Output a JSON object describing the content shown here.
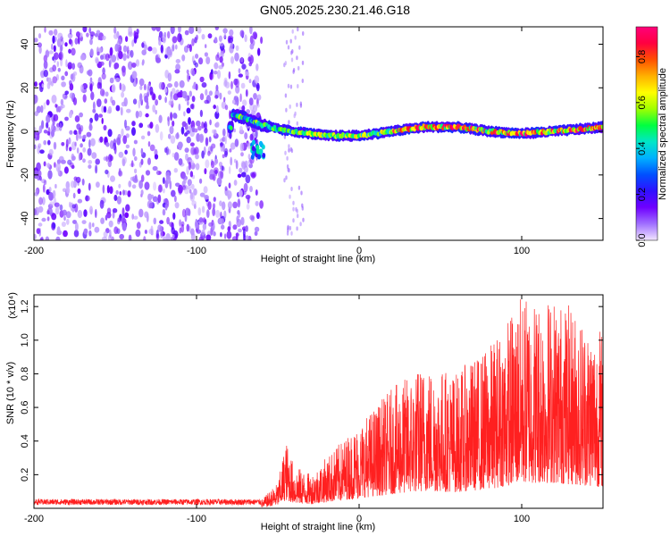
{
  "title": "GN05.2025.230.21.46.G18",
  "chart_data": [
    {
      "type": "heatmap",
      "xlabel": "Height of straight line (km)",
      "ylabel": "Frequency (Hz)",
      "xlim": [
        -200,
        150
      ],
      "ylim": [
        -50,
        48
      ],
      "xticks": [
        -200,
        -100,
        0,
        100
      ],
      "yticks": [
        -40,
        -20,
        0,
        20,
        40
      ],
      "colorbar": {
        "label": "Normalized spectral amplitude",
        "range": [
          0,
          0.93
        ],
        "ticks": [
          0.0,
          0.2,
          0.4,
          0.6,
          0.8
        ],
        "colormap": [
          "#f2e6ff",
          "#a070ff",
          "#6f00ff",
          "#3010ff",
          "#0050ff",
          "#00b0ff",
          "#00e6c8",
          "#00ff40",
          "#a0ff00",
          "#ffff00",
          "#ffb000",
          "#ff5000",
          "#ff0040",
          "#ff007a"
        ]
      },
      "features": {
        "noise_region_x": [
          -200,
          -60
        ],
        "signal_trace_x": [
          -80,
          150
        ],
        "signal_trace_freq": [
          [
            -78,
            8
          ],
          [
            -70,
            6
          ],
          [
            -60,
            3
          ],
          [
            -50,
            1
          ],
          [
            -40,
            0
          ],
          [
            -20,
            -2
          ],
          [
            0,
            -2
          ],
          [
            20,
            0
          ],
          [
            40,
            2
          ],
          [
            60,
            2
          ],
          [
            80,
            0
          ],
          [
            100,
            -1
          ],
          [
            120,
            0
          ],
          [
            150,
            2
          ]
        ]
      }
    },
    {
      "type": "line",
      "xlabel": "Height of straight line (km)",
      "ylabel": "SNR (10 * v/v)",
      "yscale_label": "(x10⁴)",
      "xlim": [
        -200,
        150
      ],
      "ylim": [
        0,
        1.27
      ],
      "xticks": [
        -200,
        -100,
        0,
        100
      ],
      "yticks": [
        0.2,
        0.4,
        0.6,
        0.8,
        1.0,
        1.2
      ],
      "series": [
        {
          "color": "#ff2020",
          "envelope": [
            [
              -200,
              0.04
            ],
            [
              -60,
              0.05
            ],
            [
              -50,
              0.15
            ],
            [
              -45,
              0.4
            ],
            [
              -40,
              0.25
            ],
            [
              -30,
              0.2
            ],
            [
              -20,
              0.3
            ],
            [
              -10,
              0.4
            ],
            [
              0,
              0.5
            ],
            [
              20,
              0.7
            ],
            [
              40,
              0.85
            ],
            [
              60,
              0.8
            ],
            [
              80,
              0.95
            ],
            [
              100,
              1.25
            ],
            [
              120,
              1.25
            ],
            [
              150,
              1.05
            ]
          ]
        }
      ]
    }
  ]
}
